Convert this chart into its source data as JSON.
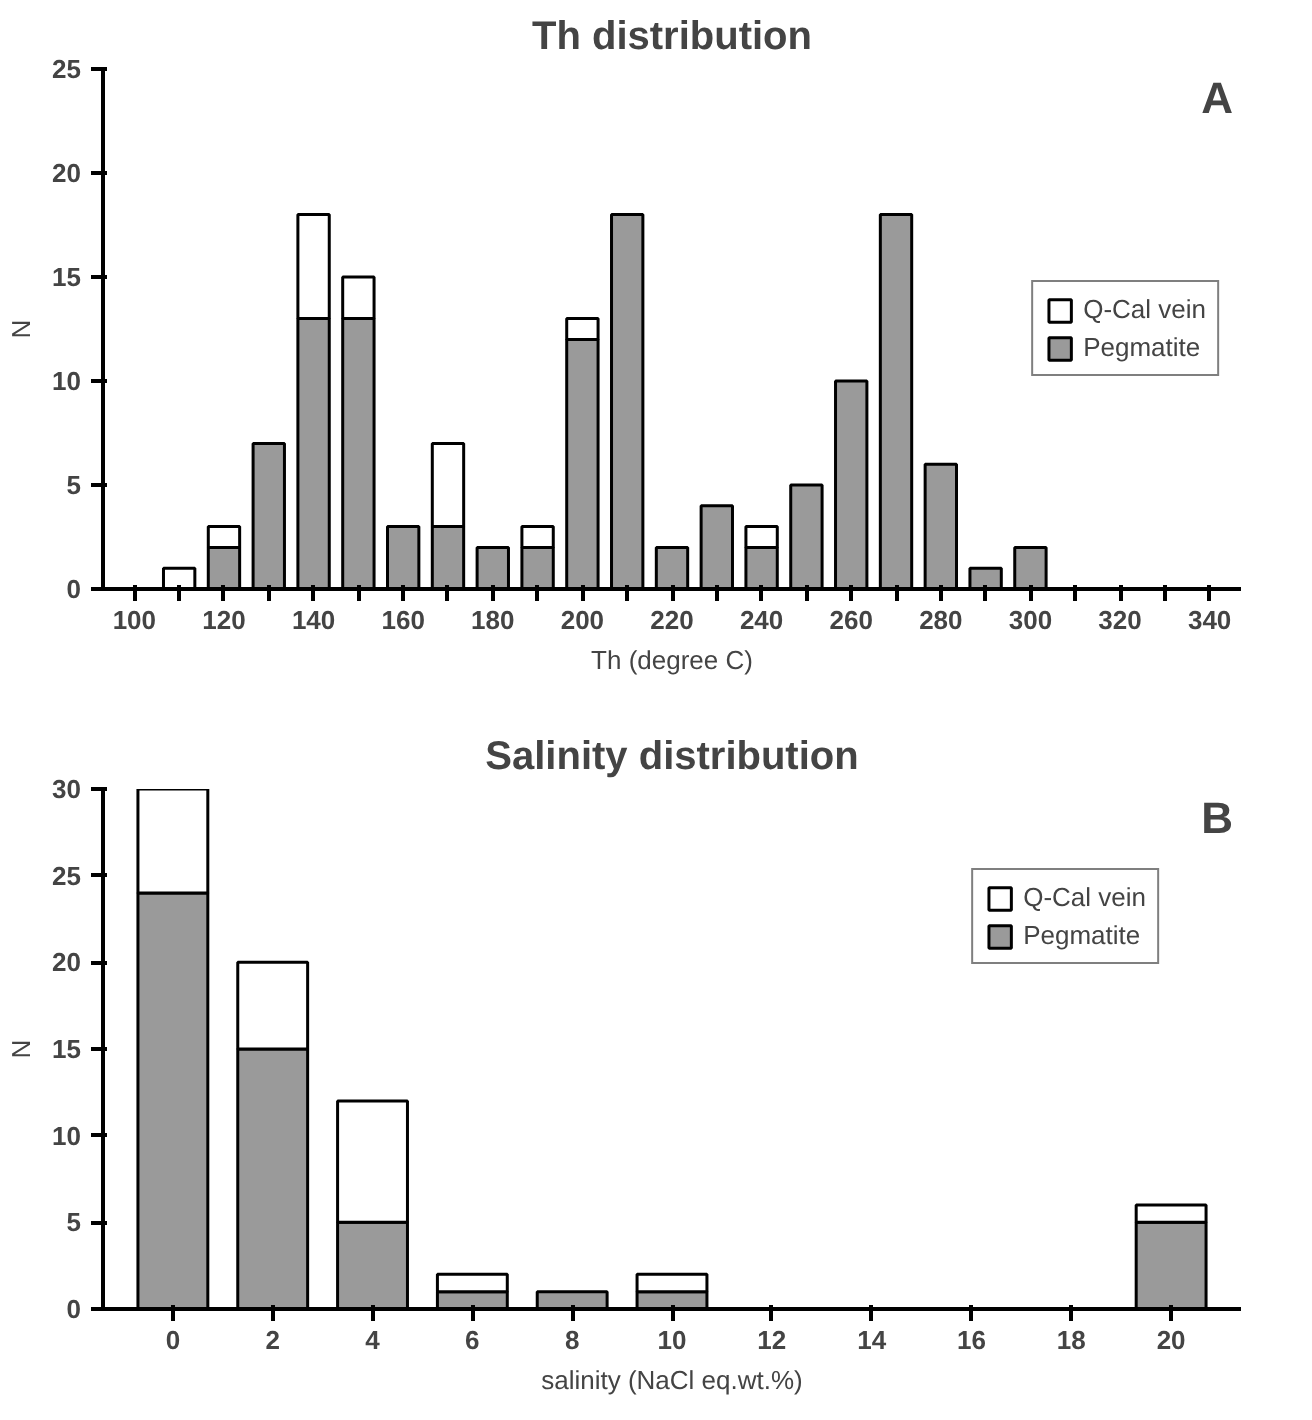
{
  "chart_data": [
    {
      "type": "bar",
      "title": "Th distribution",
      "xlabel": "Th (degree C)",
      "ylabel": "N",
      "stacked": true,
      "annotations": [
        "A"
      ],
      "categories": [
        "100",
        null,
        "120",
        null,
        "140",
        null,
        "160",
        null,
        "180",
        null,
        "200",
        null,
        "220",
        null,
        "240",
        null,
        "260",
        null,
        "280",
        null,
        "300",
        null,
        "320",
        null,
        "340"
      ],
      "series": [
        {
          "name": "Pegmatite",
          "color": "#9a9a9a",
          "values": [
            0,
            0,
            2,
            7,
            13,
            13,
            3,
            3,
            2,
            2,
            12,
            18,
            2,
            4,
            2,
            5,
            10,
            18,
            6,
            1,
            2,
            0,
            0,
            0,
            0
          ]
        },
        {
          "name": "Q-Cal vein",
          "color": "#ffffff",
          "values": [
            0,
            1,
            1,
            0,
            5,
            2,
            0,
            4,
            0,
            1,
            1,
            0,
            0,
            0,
            1,
            0,
            0,
            0,
            0,
            0,
            0,
            0,
            0,
            0,
            0
          ]
        }
      ],
      "ylim": [
        0,
        25
      ],
      "yticks": [
        0,
        5,
        10,
        15,
        20,
        25
      ],
      "grid": false,
      "legend": "right"
    },
    {
      "type": "bar",
      "title": "Salinity distribution",
      "xlabel": "salinity (NaCl eq.wt.%)",
      "ylabel": "N",
      "stacked": true,
      "annotations": [
        "B"
      ],
      "categories": [
        "0",
        "2",
        "4",
        "6",
        "8",
        "10",
        "12",
        "14",
        "16",
        "18",
        "20"
      ],
      "series": [
        {
          "name": "Pegmatite",
          "color": "#9a9a9a",
          "values": [
            24,
            15,
            5,
            1,
            1,
            1,
            0,
            0,
            0,
            0,
            5
          ]
        },
        {
          "name": "Q-Cal vein",
          "color": "#ffffff",
          "values": [
            6,
            5,
            7,
            1,
            0,
            1,
            0,
            0,
            0,
            0,
            1
          ]
        }
      ],
      "ylim": [
        0,
        30
      ],
      "yticks": [
        0,
        5,
        10,
        15,
        20,
        25,
        30
      ],
      "grid": false,
      "legend": "top right"
    }
  ]
}
